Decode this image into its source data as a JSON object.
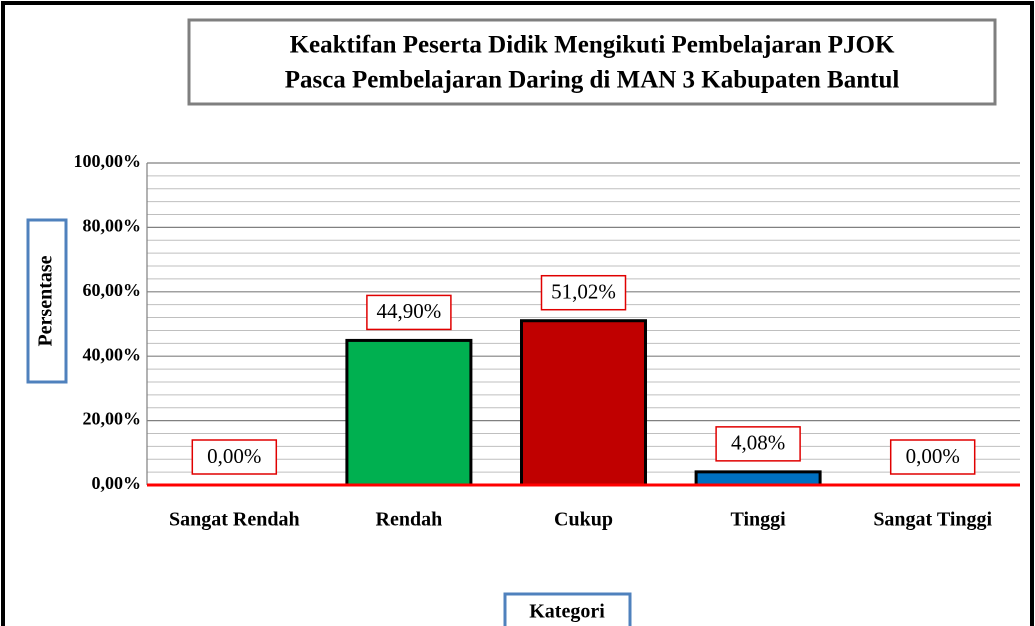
{
  "chart_data": {
    "type": "bar",
    "title": "Keaktifan Peserta Didik Mengikuti Pembelajaran PJOK",
    "subtitle": "Pasca Pembelajaran Daring di MAN 3 Kabupaten Bantul",
    "y_label": "Persentase",
    "x_label": "Kategori",
    "categories": [
      "Sangat Rendah",
      "Rendah",
      "Cukup",
      "Tinggi",
      "Sangat Tinggi"
    ],
    "values": [
      0,
      44.9,
      51.02,
      4.08,
      0
    ],
    "value_labels": [
      "0,00%",
      "44,90%",
      "51,02%",
      "4,08%",
      "0,00%"
    ],
    "colors": [
      "#7f7f7f",
      "#00b050",
      "#c00000",
      "#0070c0",
      "#7f7f7f"
    ],
    "ylim": [
      0,
      100
    ],
    "yticks": [
      {
        "value": 0,
        "label": "0,00%"
      },
      {
        "value": 20,
        "label": "20,00%"
      },
      {
        "value": 40,
        "label": "40,00%"
      },
      {
        "value": 60,
        "label": "60,00%"
      },
      {
        "value": 80,
        "label": "80,00%"
      },
      {
        "value": 100,
        "label": "100,00%"
      }
    ],
    "grid": true
  }
}
